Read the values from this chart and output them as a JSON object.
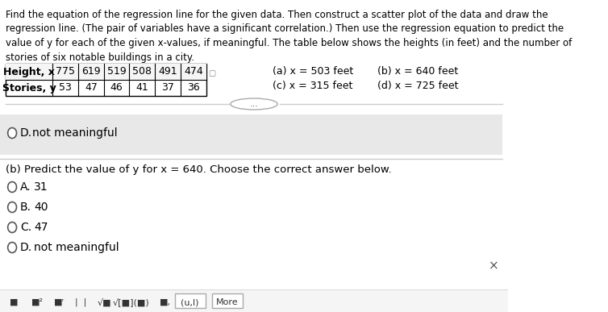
{
  "title_lines": [
    "Find the equation of the regression line for the given data. Then construct a scatter plot of the data and draw the",
    "regression line. (The pair of variables have a significant correlation.) Then use the regression equation to predict the",
    "value of y for each of the given x-values, if meaningful. The table below shows the heights (in feet) and the number of",
    "stories of six notable buildings in a city."
  ],
  "table_header": [
    "Height, x",
    "775",
    "619",
    "519",
    "508",
    "491",
    "474"
  ],
  "table_row2": [
    "Stories, y",
    "53",
    "47",
    "46",
    "41",
    "37",
    "36"
  ],
  "x_values_labels": [
    "(a) x = 503 feet",
    "(b) x = 640 feet",
    "(c) x = 315 feet",
    "(d) x = 725 feet"
  ],
  "divider_dots": "...",
  "section_d_label": "D.",
  "section_d_text": "not meaningful",
  "section_d_circle": true,
  "part_b_label": "(b) Predict the value of y for x = 640. Choose the correct answer below.",
  "choices": [
    {
      "letter": "A.",
      "text": "31"
    },
    {
      "letter": "B.",
      "text": "40"
    },
    {
      "letter": "C.",
      "text": "47"
    },
    {
      "letter": "D.",
      "text": "not meaningful"
    }
  ],
  "close_button": "×",
  "bottom_buttons": [
    "■",
    "■²",
    "■ʳ",
    "| |",
    "√□",
    "√[□](□)",
    "■,",
    "(u,l)",
    "More"
  ],
  "bg_color": "#ffffff",
  "text_color": "#000000",
  "table_border_color": "#000000",
  "light_bg": "#f0f0f0",
  "circle_color": "#555555",
  "title_fontsize": 9.5,
  "body_fontsize": 10,
  "small_fontsize": 8.5
}
